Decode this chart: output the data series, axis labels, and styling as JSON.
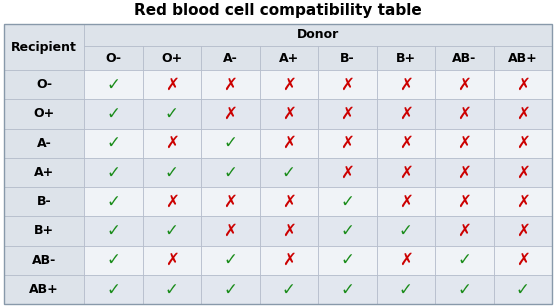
{
  "title": "Red blood cell compatibility table",
  "donor_label": "Donor",
  "recipient_label": "Recipient",
  "blood_types": [
    "O-",
    "O+",
    "A-",
    "A+",
    "B-",
    "B+",
    "AB-",
    "AB+"
  ],
  "compatibility": [
    [
      1,
      0,
      0,
      0,
      0,
      0,
      0,
      0
    ],
    [
      1,
      1,
      0,
      0,
      0,
      0,
      0,
      0
    ],
    [
      1,
      0,
      1,
      0,
      0,
      0,
      0,
      0
    ],
    [
      1,
      1,
      1,
      1,
      0,
      0,
      0,
      0
    ],
    [
      1,
      0,
      0,
      0,
      1,
      0,
      0,
      0
    ],
    [
      1,
      1,
      0,
      0,
      1,
      1,
      0,
      0
    ],
    [
      1,
      0,
      1,
      0,
      1,
      0,
      1,
      0
    ],
    [
      1,
      1,
      1,
      1,
      1,
      1,
      1,
      1
    ]
  ],
  "check_color": "#1a8c1a",
  "cross_color": "#cc0000",
  "header_bg": "#dde3ea",
  "row_bg_light": "#f0f3f7",
  "row_bg_dark": "#e2e7ef",
  "grid_color": "#b0b8c8",
  "title_fontsize": 11,
  "header_fontsize": 9,
  "cell_fontsize": 12,
  "label_fontsize": 9,
  "fig_width": 5.56,
  "fig_height": 3.08,
  "dpi": 100
}
